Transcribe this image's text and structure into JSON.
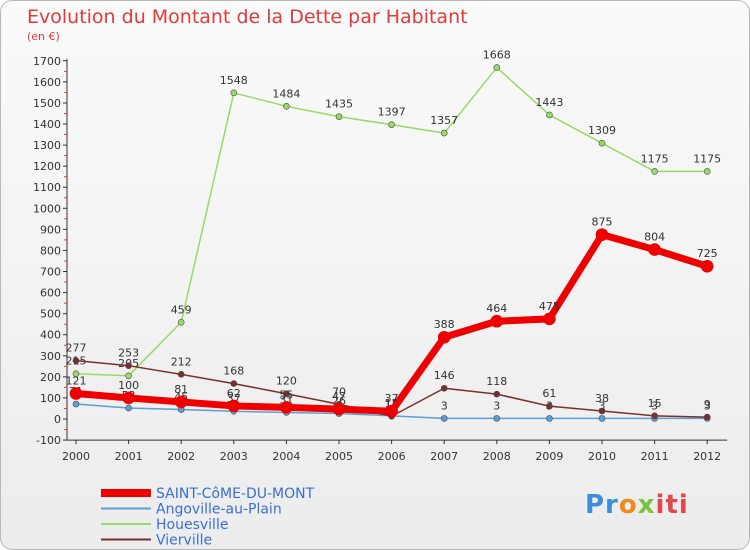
{
  "chart_data": {
    "type": "line",
    "title": "Evolution du Montant de la Dette par Habitant",
    "subtitle": "(en €)",
    "xlabel": "",
    "ylabel": "",
    "x": [
      "2000",
      "2001",
      "2002",
      "2003",
      "2004",
      "2005",
      "2006",
      "2007",
      "2008",
      "2009",
      "2010",
      "2011",
      "2012"
    ],
    "ylim": [
      -100,
      1700
    ],
    "yticks": [
      -100,
      0,
      100,
      200,
      300,
      400,
      500,
      600,
      700,
      800,
      900,
      1000,
      1100,
      1200,
      1300,
      1400,
      1500,
      1600,
      1700
    ],
    "grid": false,
    "legend": "bottom-left",
    "series": [
      {
        "name": "Angoville-au-Plain",
        "color": "#5b9fd6",
        "width": 1.5,
        "values": [
          71,
          52,
          45,
          37,
          31,
          26,
          15,
          3,
          3,
          3,
          3,
          3,
          3
        ],
        "labels": [
          "71",
          "52",
          "45",
          "37",
          "31",
          "26",
          "15",
          "3",
          "3",
          "3",
          "3",
          "3",
          "3"
        ]
      },
      {
        "name": "Houesville",
        "color": "#99d966",
        "width": 1.5,
        "values": [
          215,
          205,
          459,
          1548,
          1484,
          1435,
          1397,
          1357,
          1668,
          1443,
          1309,
          1175,
          1175
        ],
        "labels": [
          "215",
          "205",
          "459",
          "1548",
          "1484",
          "1435",
          "1397",
          "1357",
          "1668",
          "1443",
          "1309",
          "1175",
          "1175"
        ]
      },
      {
        "name": "Vierville",
        "color": "#7a2f2f",
        "width": 1.5,
        "values": [
          277,
          253,
          212,
          168,
          120,
          70,
          13,
          146,
          118,
          61,
          38,
          15,
          9
        ],
        "labels": [
          "277",
          "253",
          "212",
          "168",
          "120",
          "70",
          "13",
          "146",
          "118",
          "61",
          "38",
          "15",
          "9"
        ]
      },
      {
        "name": "SAINT-CôME-DU-MONT",
        "color": "#ee0000",
        "width": 7,
        "values": [
          121,
          100,
          81,
          62,
          55,
          47,
          37,
          388,
          464,
          475,
          875,
          804,
          725
        ],
        "labels": [
          "121",
          "100",
          "81",
          "62",
          "55",
          "47",
          "37",
          "388",
          "464",
          "475",
          "875",
          "804",
          "725"
        ]
      }
    ],
    "legend_order": [
      "SAINT-CôME-DU-MONT",
      "Angoville-au-Plain",
      "Houesville",
      "Vierville"
    ]
  },
  "brand": {
    "logo_parts": [
      "Pr",
      "o",
      "x",
      "iti"
    ]
  }
}
